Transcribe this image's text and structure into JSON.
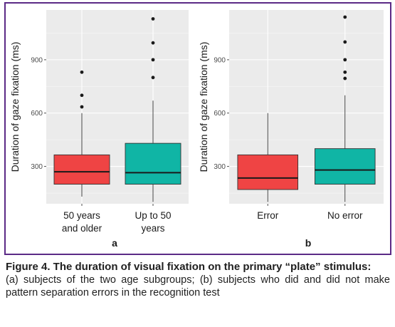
{
  "chart_data": [
    {
      "type": "box",
      "panel_label": "a",
      "ylabel": "Duration of gaze fixation (ms)",
      "xlabel": "",
      "ylim": [
        90,
        1180
      ],
      "yticks": [
        300,
        600,
        900
      ],
      "grid": true,
      "legend": "none",
      "categories": [
        "50 years\nand older",
        "Up to 50\nyears"
      ],
      "boxes": [
        {
          "color": "#ef4444",
          "whisker_low": 130,
          "q1": 200,
          "median": 270,
          "q3": 365,
          "whisker_high": 600,
          "outliers": [
            635,
            700,
            830
          ]
        },
        {
          "color": "#10b5a5",
          "whisker_low": 100,
          "q1": 200,
          "median": 265,
          "q3": 430,
          "whisker_high": 670,
          "outliers": [
            800,
            900,
            995,
            1130
          ]
        }
      ]
    },
    {
      "type": "box",
      "panel_label": "b",
      "ylabel": "Duration of gaze fixation (ms)",
      "xlabel": "",
      "ylim": [
        90,
        1180
      ],
      "yticks": [
        300,
        600,
        900
      ],
      "grid": true,
      "legend": "none",
      "categories": [
        "Error",
        "No error"
      ],
      "boxes": [
        {
          "color": "#ef4444",
          "whisker_low": 100,
          "q1": 170,
          "median": 235,
          "q3": 365,
          "whisker_high": 600,
          "outliers": []
        },
        {
          "color": "#10b5a5",
          "whisker_low": 100,
          "q1": 200,
          "median": 280,
          "q3": 400,
          "whisker_high": 700,
          "outliers": [
            795,
            830,
            900,
            1000,
            1140
          ]
        }
      ]
    }
  ],
  "caption": {
    "title": "Figure 4. The duration of visual fixation on the primary “plate” stimulus:",
    "body": "(a) subjects of the two age subgroups; (b) subjects who did and did not make pattern separation errors in the recognition test"
  }
}
